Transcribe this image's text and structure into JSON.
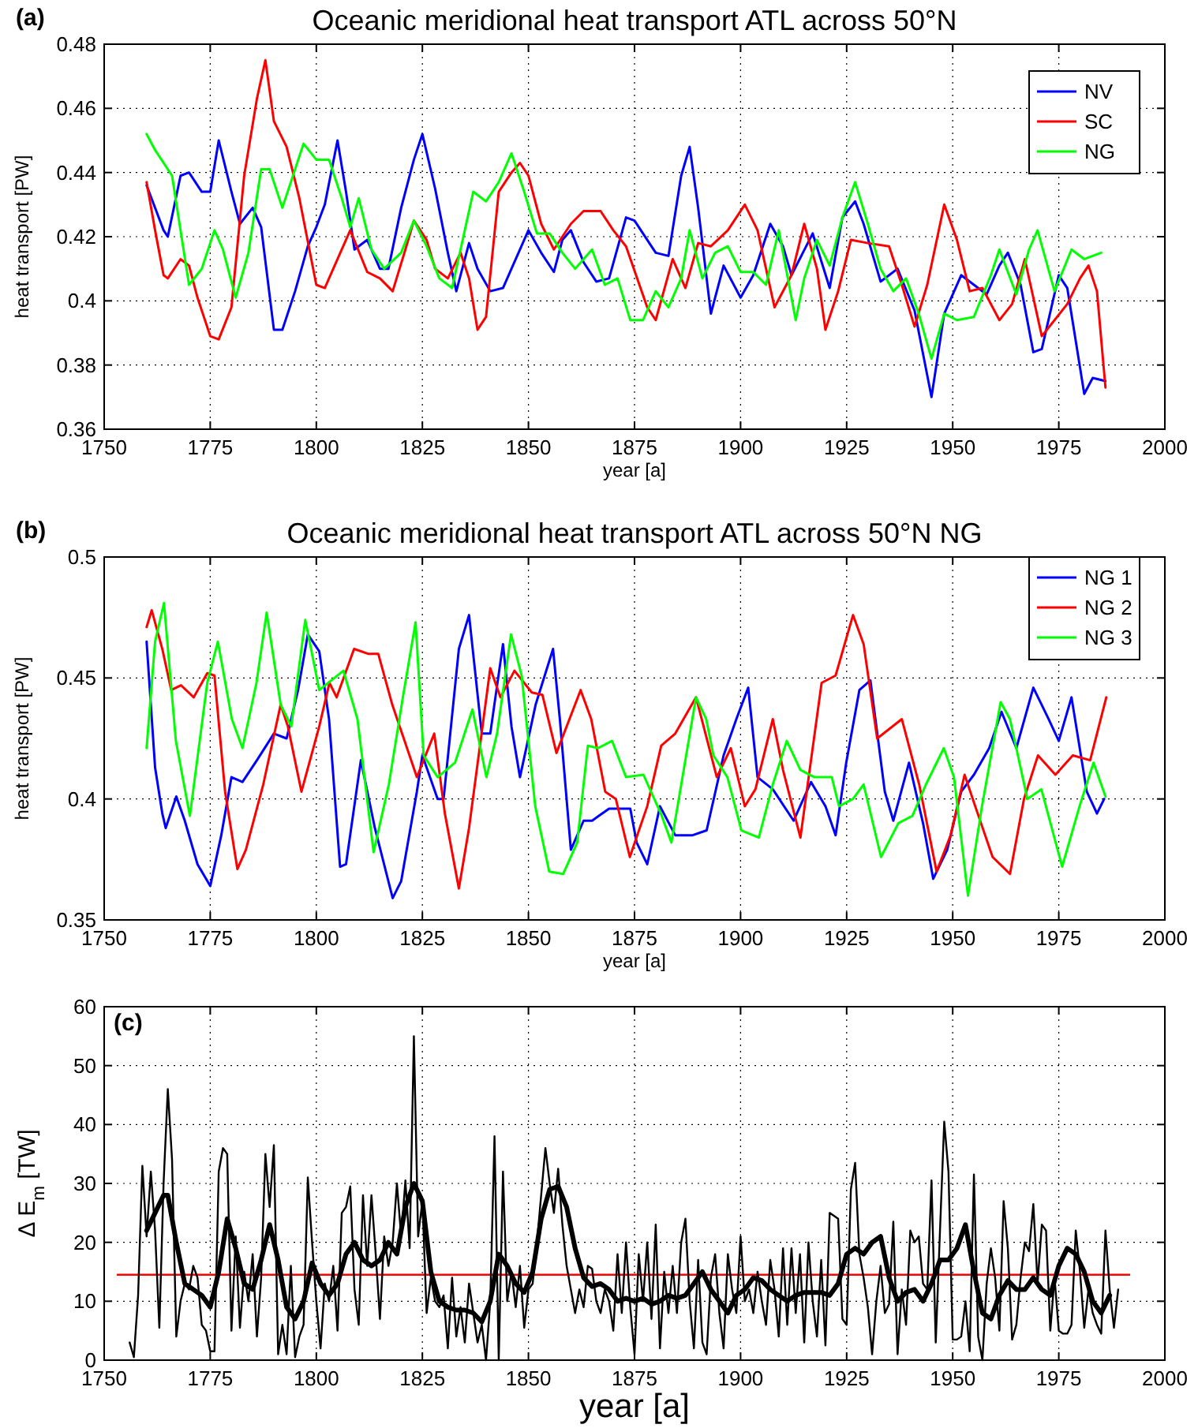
{
  "chart_data": [
    {
      "type": "line",
      "title": "Oceanic meridional heat transport ATL across 50°N",
      "xlabel": "year [a]",
      "ylabel": "heat transport [PW]",
      "annotations": [
        "(a)"
      ],
      "xlim": [
        1750,
        2000
      ],
      "xticks": [
        1750,
        1775,
        1800,
        1825,
        1850,
        1875,
        1900,
        1925,
        1950,
        1975,
        2000
      ],
      "ylim": [
        0.36,
        0.48
      ],
      "yticks": [
        0.36,
        0.38,
        0.4,
        0.42,
        0.44,
        0.46,
        0.48
      ],
      "grid": true,
      "legend": "top right",
      "line_style": "solid",
      "series": [
        {
          "name": "NV",
          "color": "#0000ff",
          "x": [
            1760,
            1764,
            1765,
            1768,
            1770,
            1773,
            1775,
            1777,
            1780,
            1782,
            1785,
            1787,
            1790,
            1792,
            1795,
            1798,
            1800,
            1802,
            1805,
            1807,
            1809,
            1812,
            1815,
            1817,
            1820,
            1823,
            1825,
            1828,
            1831,
            1833,
            1836,
            1838,
            1841,
            1844,
            1846,
            1850,
            1853,
            1856,
            1858,
            1860,
            1863,
            1866,
            1869,
            1873,
            1875,
            1880,
            1883,
            1886,
            1888,
            1890,
            1893,
            1896,
            1900,
            1903,
            1907,
            1910,
            1912,
            1917,
            1921,
            1924,
            1927,
            1929,
            1933,
            1937,
            1941,
            1945,
            1948,
            1952,
            1955,
            1958,
            1961,
            1963,
            1966,
            1969,
            1971,
            1975,
            1977,
            1981,
            1983,
            1986
          ],
          "values": [
            0.436,
            0.422,
            0.42,
            0.439,
            0.44,
            0.434,
            0.434,
            0.45,
            0.434,
            0.424,
            0.429,
            0.423,
            0.391,
            0.391,
            0.403,
            0.417,
            0.423,
            0.43,
            0.45,
            0.434,
            0.416,
            0.419,
            0.41,
            0.41,
            0.429,
            0.444,
            0.452,
            0.435,
            0.415,
            0.403,
            0.418,
            0.41,
            0.403,
            0.404,
            0.41,
            0.422,
            0.415,
            0.409,
            0.419,
            0.422,
            0.412,
            0.406,
            0.407,
            0.426,
            0.425,
            0.415,
            0.414,
            0.439,
            0.448,
            0.429,
            0.396,
            0.411,
            0.401,
            0.408,
            0.424,
            0.417,
            0.408,
            0.421,
            0.404,
            0.426,
            0.431,
            0.424,
            0.406,
            0.41,
            0.397,
            0.37,
            0.396,
            0.408,
            0.405,
            0.402,
            0.411,
            0.415,
            0.405,
            0.384,
            0.385,
            0.408,
            0.404,
            0.371,
            0.376,
            0.375
          ]
        },
        {
          "name": "SC",
          "color": "#ff0000",
          "x": [
            1760,
            1762,
            1764,
            1765,
            1768,
            1770,
            1772,
            1775,
            1777,
            1780,
            1783,
            1786,
            1788,
            1790,
            1793,
            1796,
            1800,
            1802,
            1805,
            1808,
            1812,
            1815,
            1818,
            1821,
            1823,
            1826,
            1828,
            1831,
            1834,
            1836,
            1838,
            1840,
            1843,
            1846,
            1848,
            1850,
            1853,
            1856,
            1860,
            1863,
            1867,
            1870,
            1873,
            1878,
            1880,
            1884,
            1887,
            1890,
            1893,
            1897,
            1901,
            1904,
            1908,
            1912,
            1915,
            1918,
            1920,
            1923,
            1926,
            1930,
            1935,
            1938,
            1941,
            1944,
            1948,
            1951,
            1954,
            1957,
            1961,
            1964,
            1967,
            1971,
            1974,
            1977,
            1980,
            1982,
            1984,
            1986
          ],
          "values": [
            0.437,
            0.422,
            0.408,
            0.407,
            0.413,
            0.411,
            0.401,
            0.389,
            0.388,
            0.398,
            0.439,
            0.463,
            0.475,
            0.456,
            0.448,
            0.432,
            0.405,
            0.404,
            0.413,
            0.422,
            0.409,
            0.407,
            0.403,
            0.416,
            0.425,
            0.419,
            0.41,
            0.407,
            0.415,
            0.407,
            0.391,
            0.395,
            0.434,
            0.44,
            0.443,
            0.439,
            0.424,
            0.416,
            0.424,
            0.428,
            0.428,
            0.422,
            0.417,
            0.398,
            0.394,
            0.413,
            0.404,
            0.418,
            0.417,
            0.422,
            0.43,
            0.422,
            0.398,
            0.408,
            0.424,
            0.41,
            0.391,
            0.403,
            0.419,
            0.418,
            0.417,
            0.405,
            0.392,
            0.405,
            0.43,
            0.419,
            0.403,
            0.404,
            0.394,
            0.399,
            0.413,
            0.389,
            0.394,
            0.399,
            0.407,
            0.411,
            0.403,
            0.373
          ]
        },
        {
          "name": "NG",
          "color": "#00ff00",
          "x": [
            1760,
            1762,
            1766,
            1770,
            1773,
            1776,
            1778,
            1781,
            1784,
            1787,
            1789,
            1792,
            1795,
            1797,
            1800,
            1803,
            1806,
            1808,
            1810,
            1813,
            1816,
            1820,
            1823,
            1826,
            1829,
            1832,
            1835,
            1837,
            1840,
            1843,
            1846,
            1849,
            1852,
            1855,
            1858,
            1861,
            1865,
            1868,
            1871,
            1874,
            1877,
            1880,
            1883,
            1886,
            1888,
            1891,
            1894,
            1897,
            1900,
            1903,
            1906,
            1909,
            1913,
            1915,
            1918,
            1921,
            1924,
            1927,
            1930,
            1933,
            1936,
            1939,
            1942,
            1945,
            1948,
            1951,
            1955,
            1959,
            1961,
            1965,
            1968,
            1970,
            1974,
            1978,
            1981,
            1985
          ],
          "values": [
            0.452,
            0.447,
            0.439,
            0.405,
            0.41,
            0.422,
            0.416,
            0.401,
            0.415,
            0.441,
            0.441,
            0.429,
            0.441,
            0.449,
            0.444,
            0.444,
            0.432,
            0.423,
            0.432,
            0.416,
            0.41,
            0.415,
            0.425,
            0.417,
            0.407,
            0.404,
            0.422,
            0.434,
            0.431,
            0.437,
            0.446,
            0.434,
            0.421,
            0.421,
            0.415,
            0.41,
            0.416,
            0.405,
            0.407,
            0.394,
            0.394,
            0.403,
            0.398,
            0.407,
            0.422,
            0.407,
            0.415,
            0.417,
            0.409,
            0.409,
            0.405,
            0.422,
            0.394,
            0.407,
            0.419,
            0.411,
            0.426,
            0.437,
            0.424,
            0.41,
            0.403,
            0.407,
            0.396,
            0.382,
            0.396,
            0.394,
            0.395,
            0.408,
            0.416,
            0.402,
            0.416,
            0.422,
            0.403,
            0.416,
            0.413,
            0.415
          ]
        }
      ]
    },
    {
      "type": "line",
      "title": "Oceanic meridional heat transport ATL across 50°N NG",
      "xlabel": "year [a]",
      "ylabel": "heat transport [PW]",
      "annotations": [
        "(b)"
      ],
      "xlim": [
        1750,
        2000
      ],
      "xticks": [
        1750,
        1775,
        1800,
        1825,
        1850,
        1875,
        1900,
        1925,
        1950,
        1975,
        2000
      ],
      "ylim": [
        0.35,
        0.5
      ],
      "yticks": [
        0.35,
        0.4,
        0.45,
        0.5
      ],
      "grid": true,
      "legend": "top right",
      "line_style": "solid",
      "series": [
        {
          "name": "NG 1",
          "color": "#0000ff",
          "x": [
            1760,
            1762,
            1763.7,
            1764.5,
            1767,
            1769,
            1772,
            1775,
            1777.6,
            1780,
            1782.6,
            1786,
            1790,
            1793,
            1795.7,
            1798,
            1800.7,
            1803,
            1805.6,
            1807,
            1810.5,
            1813.8,
            1818,
            1820,
            1823.7,
            1825,
            1828.6,
            1830,
            1833.6,
            1836,
            1839,
            1841,
            1844,
            1846,
            1848,
            1851.7,
            1855.8,
            1857.4,
            1860,
            1863,
            1865,
            1869,
            1874,
            1875.5,
            1878,
            1881,
            1884.6,
            1888.7,
            1892,
            1896,
            1899,
            1901.8,
            1904,
            1907.6,
            1912.5,
            1916.6,
            1920,
            1922.4,
            1924.9,
            1928,
            1930.6,
            1934,
            1936,
            1939.7,
            1943,
            1945.4,
            1948.7,
            1952,
            1955,
            1958.6,
            1961.5,
            1965,
            1969,
            1972.6,
            1975,
            1978,
            1981.6,
            1984,
            1985.7
          ],
          "values": [
            0.465,
            0.413,
            0.394,
            0.388,
            0.401,
            0.391,
            0.373,
            0.364,
            0.385,
            0.409,
            0.407,
            0.416,
            0.427,
            0.425,
            0.445,
            0.468,
            0.461,
            0.433,
            0.372,
            0.373,
            0.416,
            0.388,
            0.359,
            0.366,
            0.403,
            0.418,
            0.4,
            0.4,
            0.462,
            0.476,
            0.427,
            0.427,
            0.464,
            0.43,
            0.409,
            0.439,
            0.462,
            0.433,
            0.379,
            0.391,
            0.391,
            0.396,
            0.396,
            0.382,
            0.373,
            0.397,
            0.385,
            0.385,
            0.387,
            0.418,
            0.433,
            0.446,
            0.409,
            0.404,
            0.391,
            0.407,
            0.397,
            0.385,
            0.415,
            0.445,
            0.449,
            0.403,
            0.391,
            0.415,
            0.39,
            0.367,
            0.379,
            0.403,
            0.41,
            0.421,
            0.436,
            0.421,
            0.446,
            0.433,
            0.424,
            0.442,
            0.403,
            0.394,
            0.4
          ]
        },
        {
          "name": "NG 2",
          "color": "#ff0000",
          "x": [
            1760.0,
            1761.2,
            1763.7,
            1765.8,
            1768.1,
            1771.1,
            1774.3,
            1776.0,
            1778.5,
            1781.4,
            1783.4,
            1787.5,
            1791.6,
            1793.3,
            1796.5,
            1800.7,
            1803.1,
            1804.8,
            1808.9,
            1812.2,
            1814.6,
            1817.9,
            1823.7,
            1827.8,
            1830.3,
            1833.6,
            1836.0,
            1841.0,
            1843.4,
            1846.7,
            1850.8,
            1853.3,
            1856.6,
            1862.3,
            1864.8,
            1868.1,
            1870.6,
            1873.9,
            1878.0,
            1881.3,
            1884.6,
            1889.5,
            1894.4,
            1897.7,
            1901.0,
            1903.5,
            1907.6,
            1910.0,
            1914.1,
            1919.1,
            1922.4,
            1926.5,
            1929.0,
            1932.2,
            1938.0,
            1942.1,
            1946.2,
            1949.5,
            1952.8,
            1955.3,
            1959.4,
            1963.5,
            1966.8,
            1970.1,
            1974.2,
            1978.3,
            1982.4,
            1986.2
          ],
          "values": [
            0.471,
            0.478,
            0.462,
            0.445,
            0.447,
            0.442,
            0.452,
            0.451,
            0.403,
            0.371,
            0.379,
            0.406,
            0.439,
            0.43,
            0.403,
            0.43,
            0.448,
            0.442,
            0.462,
            0.46,
            0.46,
            0.439,
            0.409,
            0.427,
            0.394,
            0.363,
            0.388,
            0.454,
            0.442,
            0.453,
            0.444,
            0.443,
            0.419,
            0.445,
            0.433,
            0.403,
            0.4,
            0.376,
            0.397,
            0.422,
            0.427,
            0.442,
            0.409,
            0.421,
            0.397,
            0.404,
            0.433,
            0.412,
            0.384,
            0.448,
            0.451,
            0.476,
            0.464,
            0.425,
            0.433,
            0.406,
            0.37,
            0.385,
            0.41,
            0.397,
            0.376,
            0.369,
            0.4,
            0.418,
            0.41,
            0.418,
            0.416,
            0.442
          ]
        },
        {
          "name": "NG 3",
          "color": "#00ff00",
          "x": [
            1760.0,
            1762.0,
            1764.1,
            1766.9,
            1770.2,
            1774.3,
            1776.8,
            1780.1,
            1782.6,
            1785.9,
            1788.3,
            1791.6,
            1794.1,
            1797.4,
            1800.7,
            1806.4,
            1809.7,
            1813.5,
            1817.1,
            1820.4,
            1823.4,
            1825.3,
            1828.6,
            1832.7,
            1836.8,
            1840.1,
            1842.6,
            1845.9,
            1848.4,
            1851.6,
            1854.9,
            1858.2,
            1861.5,
            1864.0,
            1866.4,
            1869.7,
            1873.0,
            1877.1,
            1881.2,
            1883.7,
            1889.5,
            1891.9,
            1893.6,
            1896.9,
            1900.2,
            1904.3,
            1907.6,
            1910.9,
            1914.1,
            1917.4,
            1921.5,
            1923.2,
            1926.5,
            1929.0,
            1933.1,
            1937.2,
            1940.5,
            1943.7,
            1947.9,
            1950.3,
            1953.6,
            1956.9,
            1961.3,
            1963.5,
            1967.6,
            1970.9,
            1975.8,
            1979.9,
            1983.2,
            1986.0
          ],
          "values": [
            0.421,
            0.465,
            0.481,
            0.424,
            0.393,
            0.448,
            0.465,
            0.433,
            0.421,
            0.448,
            0.477,
            0.439,
            0.43,
            0.474,
            0.445,
            0.453,
            0.433,
            0.378,
            0.406,
            0.442,
            0.473,
            0.418,
            0.409,
            0.415,
            0.437,
            0.409,
            0.427,
            0.468,
            0.451,
            0.397,
            0.37,
            0.369,
            0.382,
            0.422,
            0.421,
            0.424,
            0.409,
            0.41,
            0.394,
            0.382,
            0.442,
            0.433,
            0.418,
            0.409,
            0.387,
            0.384,
            0.406,
            0.424,
            0.412,
            0.409,
            0.409,
            0.397,
            0.4,
            0.406,
            0.376,
            0.39,
            0.393,
            0.406,
            0.421,
            0.409,
            0.36,
            0.397,
            0.44,
            0.433,
            0.4,
            0.404,
            0.372,
            0.397,
            0.415,
            0.401
          ]
        }
      ]
    },
    {
      "type": "line",
      "xlabel": "year [a]",
      "ylabel": "Δ E$_{m}$  [TW]",
      "annotations": [
        "(c)"
      ],
      "xlim": [
        1750,
        2000
      ],
      "xticks": [
        1750,
        1775,
        1800,
        1825,
        1850,
        1875,
        1900,
        1925,
        1950,
        1975,
        2000
      ],
      "ylim": [
        0,
        60
      ],
      "yticks": [
        0,
        10,
        20,
        30,
        40,
        50,
        60
      ],
      "grid": true,
      "line_style": "solid",
      "ref_lines": [
        {
          "axis": "y",
          "value": 14.5,
          "color": "#ff0000"
        }
      ],
      "series": [
        {
          "color": "#000000",
          "x": [
            1756,
            1757,
            1758,
            1759,
            1760,
            1761,
            1762,
            1763,
            1764,
            1765,
            1766,
            1767,
            1768,
            1769,
            1770,
            1771,
            1772,
            1773,
            1774,
            1775,
            1776,
            1777,
            1778,
            1779,
            1780,
            1781,
            1782,
            1783,
            1784,
            1785,
            1786,
            1787,
            1788,
            1789,
            1790,
            1791,
            1792,
            1793,
            1794,
            1795,
            1796,
            1797,
            1798,
            1799,
            1800,
            1801,
            1802,
            1803,
            1804,
            1805,
            1806,
            1807,
            1808,
            1809,
            1810,
            1811,
            1812,
            1813,
            1814,
            1815,
            1816,
            1817,
            1818,
            1819,
            1820,
            1821,
            1822,
            1823,
            1824,
            1825,
            1826,
            1827,
            1828,
            1829,
            1830,
            1831,
            1832,
            1833,
            1834,
            1835,
            1836,
            1837,
            1838,
            1839,
            1840,
            1841,
            1842,
            1843,
            1844,
            1845,
            1846,
            1847,
            1848,
            1849,
            1850,
            1851,
            1852,
            1853,
            1854,
            1855,
            1856,
            1857,
            1858,
            1859,
            1860,
            1861,
            1862,
            1863,
            1864,
            1865,
            1866,
            1867,
            1868,
            1869,
            1870,
            1871,
            1872,
            1873,
            1874,
            1875,
            1876,
            1877,
            1878,
            1879,
            1880,
            1881,
            1882,
            1883,
            1884,
            1885,
            1886,
            1887,
            1888,
            1889,
            1890,
            1891,
            1892,
            1893,
            1894,
            1895,
            1896,
            1897,
            1898,
            1899,
            1900,
            1901,
            1902,
            1903,
            1904,
            1905,
            1906,
            1907,
            1908,
            1909,
            1910,
            1911,
            1912,
            1913,
            1914,
            1915,
            1916,
            1917,
            1918,
            1919,
            1920,
            1921,
            1922,
            1923,
            1924,
            1925,
            1926,
            1927,
            1928,
            1929,
            1930,
            1931,
            1932,
            1933,
            1934,
            1935,
            1936,
            1937,
            1938,
            1939,
            1940,
            1941,
            1942,
            1943,
            1944,
            1945,
            1946,
            1947,
            1948,
            1949,
            1950,
            1951,
            1952,
            1953,
            1954,
            1955,
            1956,
            1957,
            1958,
            1959,
            1960,
            1961,
            1962,
            1963,
            1964,
            1965,
            1966,
            1967,
            1968,
            1969,
            1970,
            1971,
            1972,
            1973,
            1974,
            1975,
            1976,
            1977,
            1978,
            1979,
            1980,
            1981,
            1982,
            1983,
            1984,
            1985,
            1986,
            1987,
            1988,
            1989
          ],
          "values": [
            3,
            0.5,
            11,
            33,
            21,
            32,
            22,
            5.5,
            30,
            46,
            34,
            4,
            10,
            13,
            12,
            16,
            14,
            6,
            5,
            1.5,
            1.5,
            32,
            36,
            35,
            5,
            21,
            5.5,
            15,
            10,
            18,
            4,
            14,
            35,
            26,
            36.5,
            1,
            6,
            1,
            16,
            0.5,
            4,
            6,
            31,
            20,
            10,
            2,
            13,
            10,
            16,
            5,
            25,
            26,
            29.5,
            12,
            6,
            28,
            16,
            28,
            18,
            7,
            21,
            16,
            20,
            30,
            21,
            30.5,
            19,
            55,
            21,
            27,
            8,
            14,
            10,
            9,
            11,
            2,
            14,
            4,
            9,
            3,
            13,
            8,
            3,
            6,
            0,
            10,
            38,
            0,
            32,
            10,
            15,
            9,
            16,
            5.5,
            12,
            13,
            20,
            28,
            36,
            30,
            25,
            32.5,
            23,
            16,
            12,
            8,
            12,
            9,
            16,
            15.5,
            10,
            8,
            12,
            10,
            5,
            18,
            8,
            20,
            9,
            1,
            18,
            10,
            20,
            7,
            23,
            2,
            15,
            8,
            16,
            8,
            20,
            24,
            10,
            2,
            17,
            3,
            1,
            14,
            18,
            8,
            2,
            18,
            12,
            8,
            21,
            10,
            12,
            8,
            15,
            10,
            6,
            17,
            12,
            4,
            19,
            6,
            19,
            8,
            18,
            3,
            20,
            10,
            4,
            17,
            2.5,
            25,
            24.5,
            24,
            7,
            6,
            29,
            33.5,
            18,
            14,
            9,
            1,
            10,
            16,
            8,
            9.5,
            23.5,
            1,
            12,
            6,
            22,
            20,
            21,
            13,
            12,
            30.5,
            3,
            22,
            40.5,
            32,
            3.5,
            3.5,
            4,
            10,
            1.5,
            31.5,
            4,
            0,
            13,
            19,
            14,
            5,
            27,
            19,
            3.5,
            6,
            14,
            20,
            18.5,
            26.5,
            13,
            23,
            22,
            5,
            14,
            5,
            4.5,
            4.5,
            6,
            22,
            15,
            5.5,
            12,
            8,
            6,
            4.5,
            22,
            12,
            5.5,
            12
          ]
        },
        {
          "color": "#000000",
          "x": [
            1760,
            1762,
            1764,
            1765,
            1767,
            1769,
            1771,
            1773,
            1775,
            1777,
            1779,
            1781,
            1783,
            1785,
            1787,
            1789,
            1791,
            1793,
            1795,
            1797,
            1799,
            1801,
            1803,
            1805,
            1807,
            1809,
            1811,
            1813,
            1815,
            1817,
            1819,
            1821,
            1823,
            1825,
            1827,
            1829,
            1831,
            1833,
            1835,
            1837,
            1839,
            1841,
            1843,
            1845,
            1847,
            1849,
            1851,
            1853,
            1855,
            1857,
            1859,
            1861,
            1863,
            1865,
            1867,
            1869,
            1871,
            1873,
            1875,
            1877,
            1879,
            1881,
            1883,
            1885,
            1887,
            1889,
            1891,
            1893,
            1895,
            1897,
            1899,
            1901,
            1903,
            1905,
            1907,
            1909,
            1911,
            1913,
            1915,
            1917,
            1919,
            1921,
            1923,
            1925,
            1927,
            1929,
            1931,
            1933,
            1935,
            1937,
            1939,
            1941,
            1943,
            1945,
            1947,
            1949,
            1951,
            1953,
            1955,
            1957,
            1959,
            1961,
            1963,
            1965,
            1967,
            1969,
            1971,
            1973,
            1975,
            1977,
            1979,
            1981,
            1983,
            1985,
            1987
          ],
          "values": [
            22,
            25,
            28,
            28,
            20,
            13,
            12,
            11,
            9,
            15,
            24,
            19,
            13,
            12,
            17,
            23,
            17,
            9,
            7,
            10,
            16.5,
            13,
            11,
            13,
            18,
            20,
            17,
            16,
            17,
            20,
            18,
            26,
            30,
            27,
            15,
            10,
            9,
            8.5,
            8.5,
            8,
            6.5,
            10,
            18,
            16,
            13,
            11.5,
            15,
            24,
            29,
            29.5,
            26,
            19,
            14,
            12.5,
            13,
            12,
            10,
            10.5,
            10,
            10.5,
            9.5,
            10,
            11,
            10.5,
            11,
            13,
            15,
            12,
            10,
            8,
            11,
            12,
            14,
            13.5,
            12,
            11,
            10,
            11,
            11.5,
            11.5,
            11.5,
            11,
            13,
            18,
            19,
            18,
            20,
            21,
            14,
            10,
            11.5,
            12,
            10,
            13,
            17,
            17,
            19,
            23,
            15,
            8,
            7,
            11,
            13.5,
            12,
            12,
            14,
            12,
            11,
            16,
            19,
            18,
            15,
            10,
            8,
            11
          ]
        }
      ]
    }
  ]
}
